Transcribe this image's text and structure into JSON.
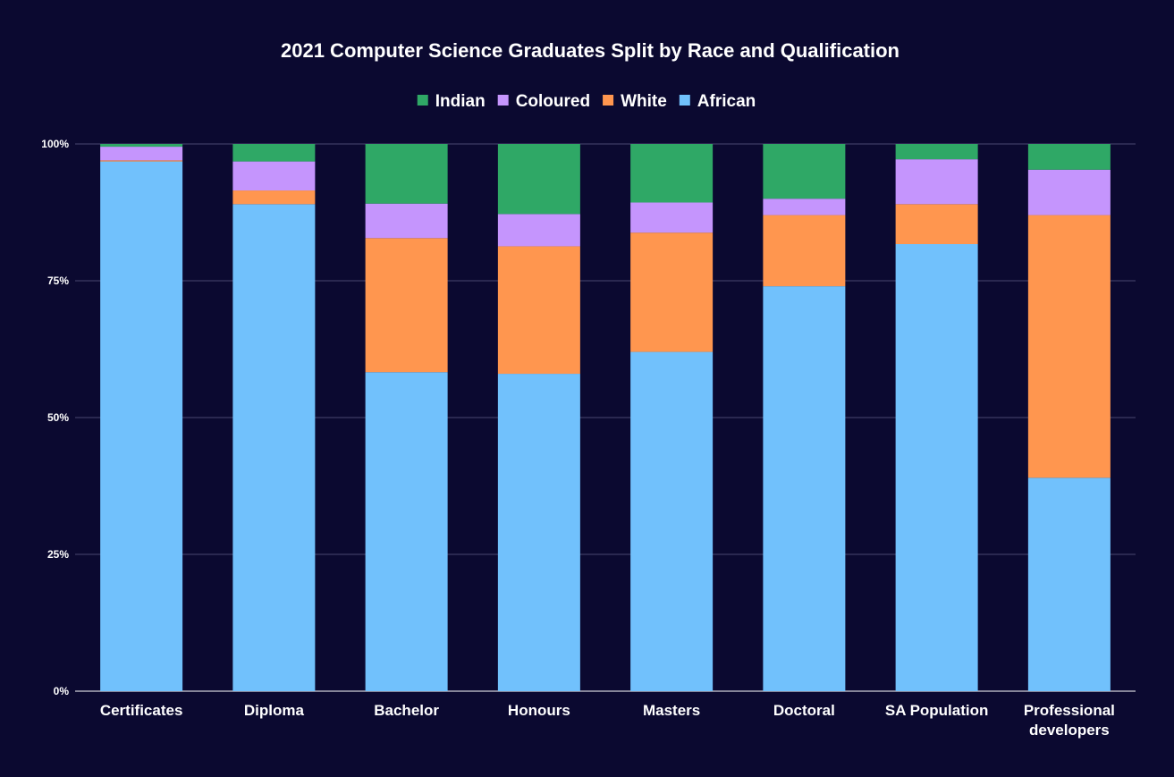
{
  "chart_data": {
    "type": "bar",
    "stacked": true,
    "normalized": true,
    "title": "2021 Computer Science Graduates Split by Race  and Qualification",
    "legend_position": "top-center",
    "xlabel": "",
    "ylabel": "",
    "ylim": [
      0,
      100
    ],
    "grid": true,
    "yticks": [
      {
        "value": 0,
        "label": "0%"
      },
      {
        "value": 25,
        "label": "25%"
      },
      {
        "value": 50,
        "label": "50%"
      },
      {
        "value": 75,
        "label": "75%"
      },
      {
        "value": 100,
        "label": "100%"
      }
    ],
    "categories": [
      [
        "Certificates"
      ],
      [
        "Diploma"
      ],
      [
        "Bachelor"
      ],
      [
        "Honours"
      ],
      [
        "Masters"
      ],
      [
        "Doctoral"
      ],
      [
        "SA Population"
      ],
      [
        "Professional",
        "developers"
      ]
    ],
    "legend_order": [
      "Indian",
      "Coloured",
      "White",
      "African"
    ],
    "series": [
      {
        "name": "African",
        "color": "#71c1fc",
        "values": [
          96.8,
          89.0,
          58.3,
          58.0,
          62.0,
          74.0,
          81.7,
          39.0
        ]
      },
      {
        "name": "White",
        "color": "#ff964f",
        "values": [
          0.2,
          2.5,
          24.5,
          23.3,
          21.8,
          13.0,
          7.3,
          48.0
        ]
      },
      {
        "name": "Coloured",
        "color": "#c595fd",
        "values": [
          2.5,
          5.3,
          6.3,
          5.9,
          5.5,
          3.0,
          8.2,
          8.3
        ]
      },
      {
        "name": "Indian",
        "color": "#2fa866",
        "values": [
          0.5,
          3.2,
          10.9,
          12.8,
          10.7,
          10.0,
          2.8,
          4.7
        ]
      }
    ]
  }
}
